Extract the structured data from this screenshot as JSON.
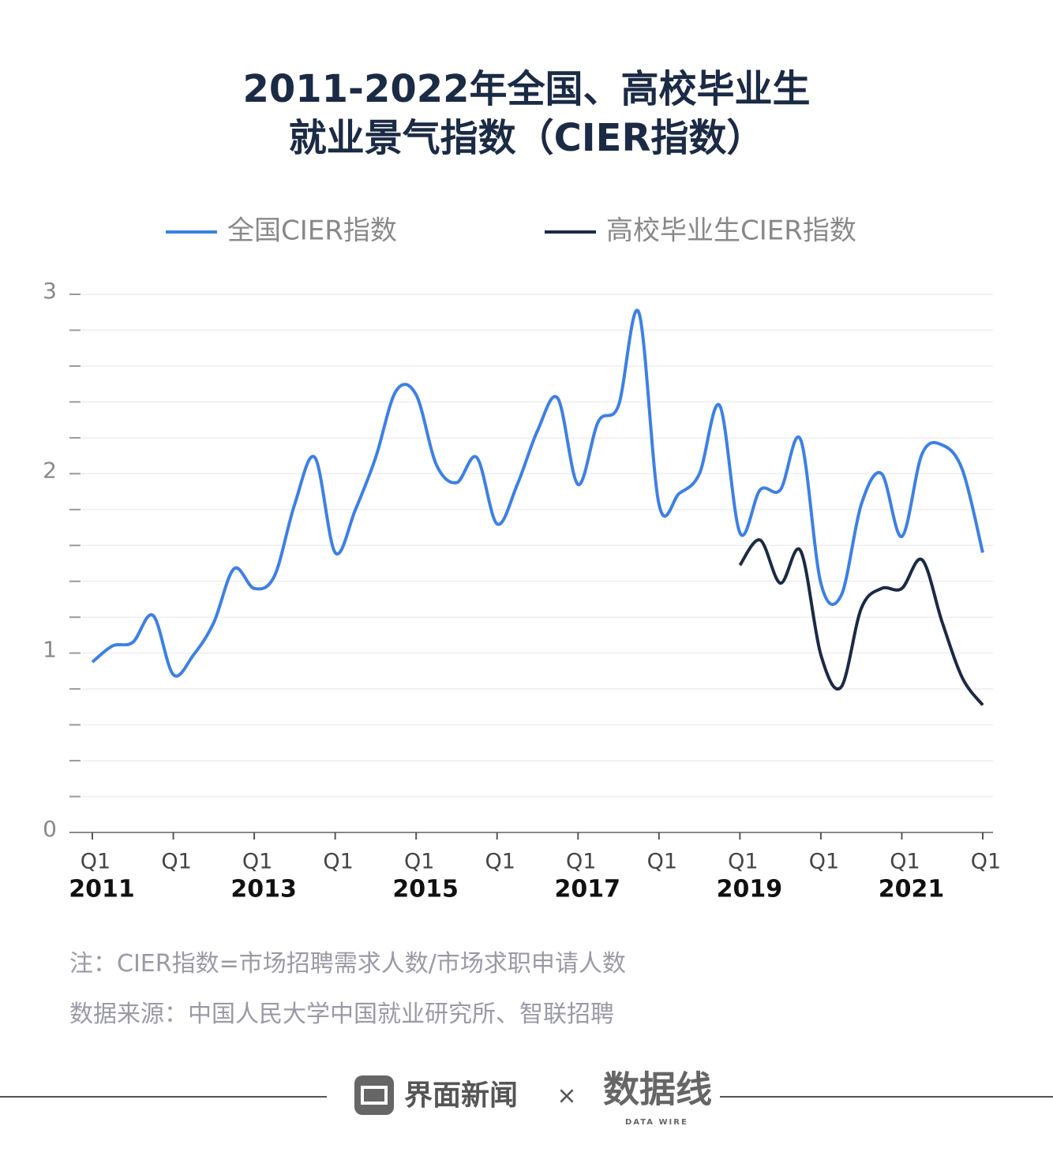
{
  "chart_data": {
    "type": "line",
    "title": "2011-2022年全国、高校毕业生\n就业景气指数（CIER指数）",
    "categories": [
      "Q1",
      null,
      null,
      null,
      "Q1",
      null,
      null,
      null,
      "Q1",
      null,
      null,
      null,
      "Q1",
      null,
      null,
      null,
      "Q1",
      null,
      null,
      null,
      "Q1",
      null,
      null,
      null,
      "Q1",
      null,
      null,
      null,
      "Q1",
      null,
      null,
      null,
      "Q1",
      null,
      null,
      null,
      "Q1",
      null,
      null,
      null,
      "Q1",
      null,
      null,
      null,
      "Q1"
    ],
    "years": [
      "2011",
      null,
      null,
      null,
      null,
      null,
      null,
      null,
      "2013",
      null,
      null,
      null,
      null,
      null,
      null,
      null,
      "2015",
      null,
      null,
      null,
      null,
      null,
      null,
      null,
      "2017",
      null,
      null,
      null,
      null,
      null,
      null,
      null,
      "2019",
      null,
      null,
      null,
      null,
      null,
      null,
      null,
      "2021",
      null,
      null,
      null,
      null
    ],
    "series": [
      {
        "name": "全国CIER指数",
        "color": "#3d80e4",
        "values": [
          0.95,
          1.04,
          1.06,
          1.21,
          0.88,
          0.99,
          1.17,
          1.47,
          1.36,
          1.43,
          1.83,
          2.09,
          1.56,
          1.8,
          2.09,
          2.46,
          2.44,
          2.05,
          1.95,
          2.09,
          1.72,
          1.94,
          2.24,
          2.42,
          1.94,
          2.29,
          2.38,
          2.9,
          1.83,
          1.89,
          2.0,
          2.38,
          1.67,
          1.91,
          1.91,
          2.19,
          1.39,
          1.32,
          1.83,
          2.0,
          1.65,
          2.11,
          2.16,
          2.02,
          1.56
        ]
      },
      {
        "name": "高校毕业生CIER指数",
        "color": "#1b2a45",
        "values": [
          null,
          null,
          null,
          null,
          null,
          null,
          null,
          null,
          null,
          null,
          null,
          null,
          null,
          null,
          null,
          null,
          null,
          null,
          null,
          null,
          null,
          null,
          null,
          null,
          null,
          null,
          null,
          null,
          null,
          null,
          null,
          null,
          1.49,
          1.63,
          1.39,
          1.57,
          0.99,
          0.81,
          1.25,
          1.36,
          1.36,
          1.52,
          1.17,
          0.86,
          0.71
        ]
      }
    ],
    "ylim": [
      0,
      3
    ],
    "yticks": [
      0,
      1,
      2,
      3
    ],
    "yminorticks": [
      0.2,
      0.4,
      0.6,
      0.8,
      1.2,
      1.4,
      1.6,
      1.8,
      2.2,
      2.4,
      2.6,
      2.8
    ],
    "grid": true,
    "notes": [
      "注：CIER指数=市场招聘需求人数/市场求职申请人数",
      "数据来源：中国人民大学中国就业研究所、智联招聘"
    ],
    "footer": {
      "left": "界面新闻",
      "sep": "×",
      "right": "数据线",
      "right_sub": "DATA WIRE"
    }
  }
}
